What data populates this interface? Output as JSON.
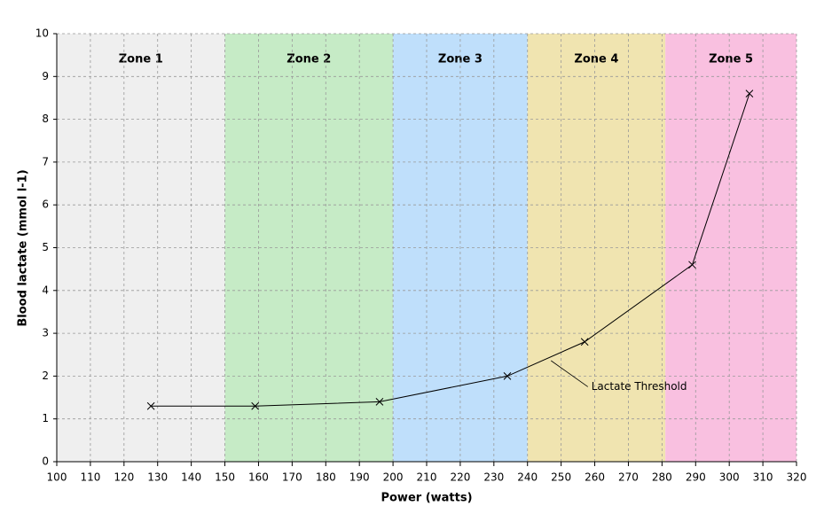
{
  "chart_data": {
    "type": "line",
    "xlabel": "Power (watts)",
    "ylabel": "Blood lactate (mmol l-1)",
    "x": [
      128,
      159,
      196,
      234,
      257,
      289,
      306
    ],
    "values": [
      1.3,
      1.3,
      1.4,
      2.0,
      2.8,
      4.6,
      8.6
    ],
    "color": "#000000",
    "xlim": [
      100,
      320
    ],
    "ylim": [
      0,
      10
    ],
    "xticks": [
      100,
      110,
      120,
      130,
      140,
      150,
      160,
      170,
      180,
      190,
      200,
      210,
      220,
      230,
      240,
      250,
      260,
      270,
      280,
      290,
      300,
      310,
      320
    ],
    "yticks": [
      0,
      1,
      2,
      3,
      4,
      5,
      6,
      7,
      8,
      9,
      10
    ],
    "grid": true,
    "zones": [
      {
        "label": "Zone 1",
        "start": 100,
        "end": 150,
        "color": "#efefef"
      },
      {
        "label": "Zone 2",
        "start": 150,
        "end": 200,
        "color": "#c6ebc6"
      },
      {
        "label": "Zone 3",
        "start": 200,
        "end": 240,
        "color": "#bfdffb"
      },
      {
        "label": "Zone 4",
        "start": 240,
        "end": 281,
        "color": "#f0e4b0"
      },
      {
        "label": "Zone 5",
        "start": 281,
        "end": 320,
        "color": "#f9c0e0"
      }
    ],
    "annotation": {
      "text": "Lactate Threshold",
      "x": 259,
      "y": 1.75,
      "from_x": 247,
      "from_y": 2.36
    }
  }
}
